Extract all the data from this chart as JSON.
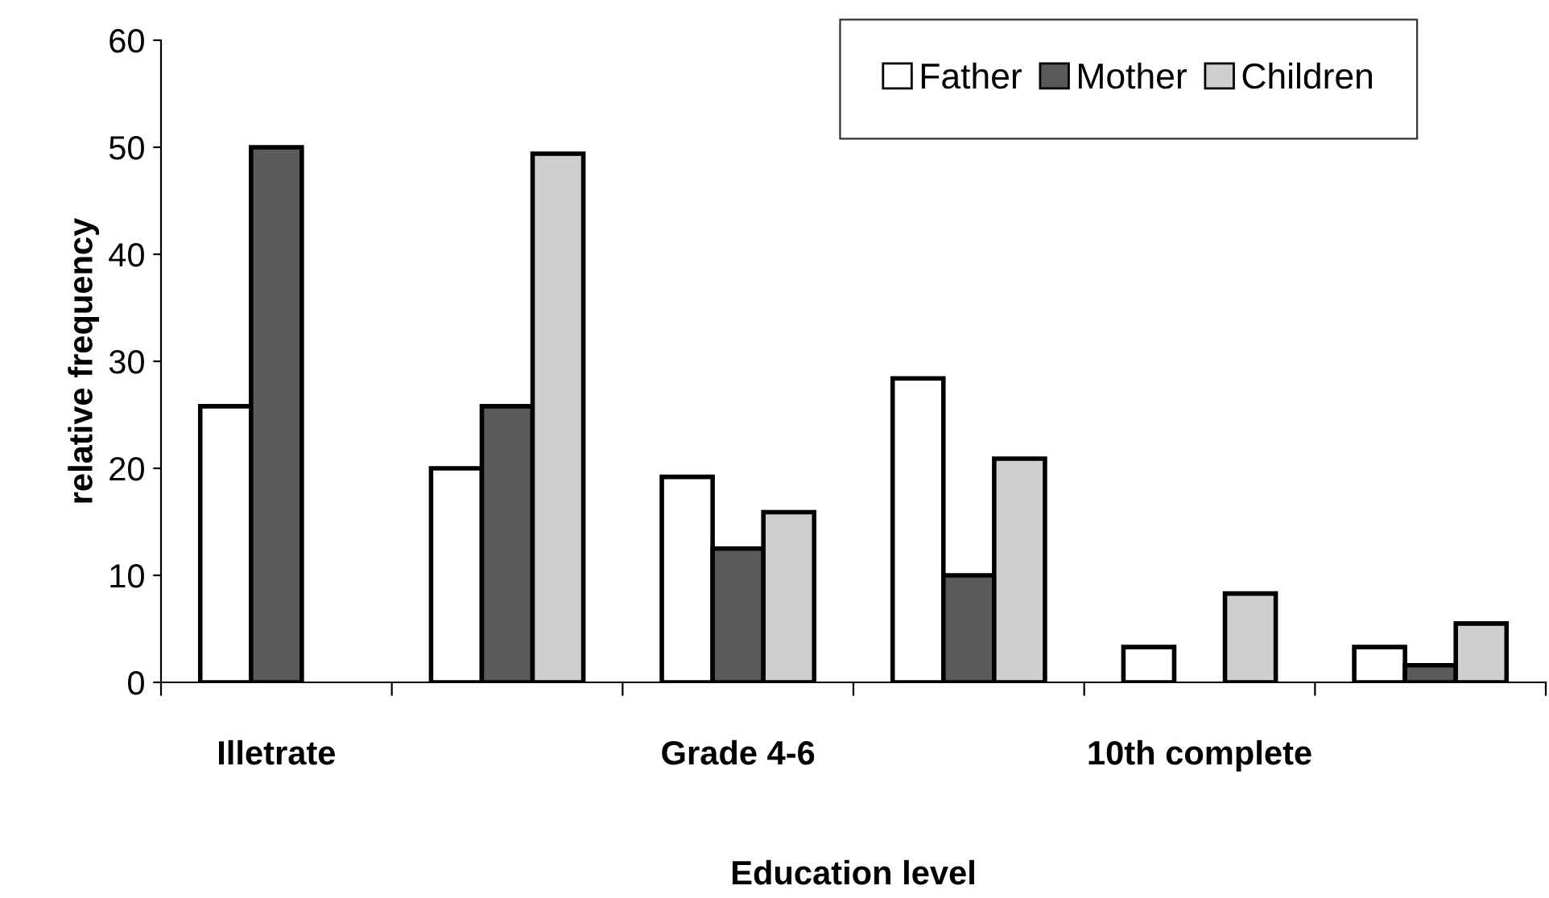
{
  "chart_data": {
    "type": "bar",
    "xlabel": "Education level",
    "ylabel": "relative frequency",
    "categories": [
      "Illetrate",
      null,
      "Grade 4-6",
      null,
      "10th complete",
      null
    ],
    "series": [
      {
        "name": "Father",
        "color": "#ffffff",
        "values": [
          25.8,
          20,
          19.2,
          28.4,
          3.3,
          3.3
        ]
      },
      {
        "name": "Mother",
        "color": "#5a5a5a",
        "values": [
          50,
          25.8,
          12.5,
          10,
          null,
          1.6
        ]
      },
      {
        "name": "Children",
        "color": "#cfcfcf",
        "values": [
          null,
          49.4,
          15.9,
          20.9,
          8.3,
          5.5
        ]
      }
    ],
    "ylim": [
      0,
      60
    ],
    "yticks": [
      0,
      10,
      20,
      30,
      40,
      50,
      60
    ],
    "grid": false,
    "legend": "top right"
  }
}
